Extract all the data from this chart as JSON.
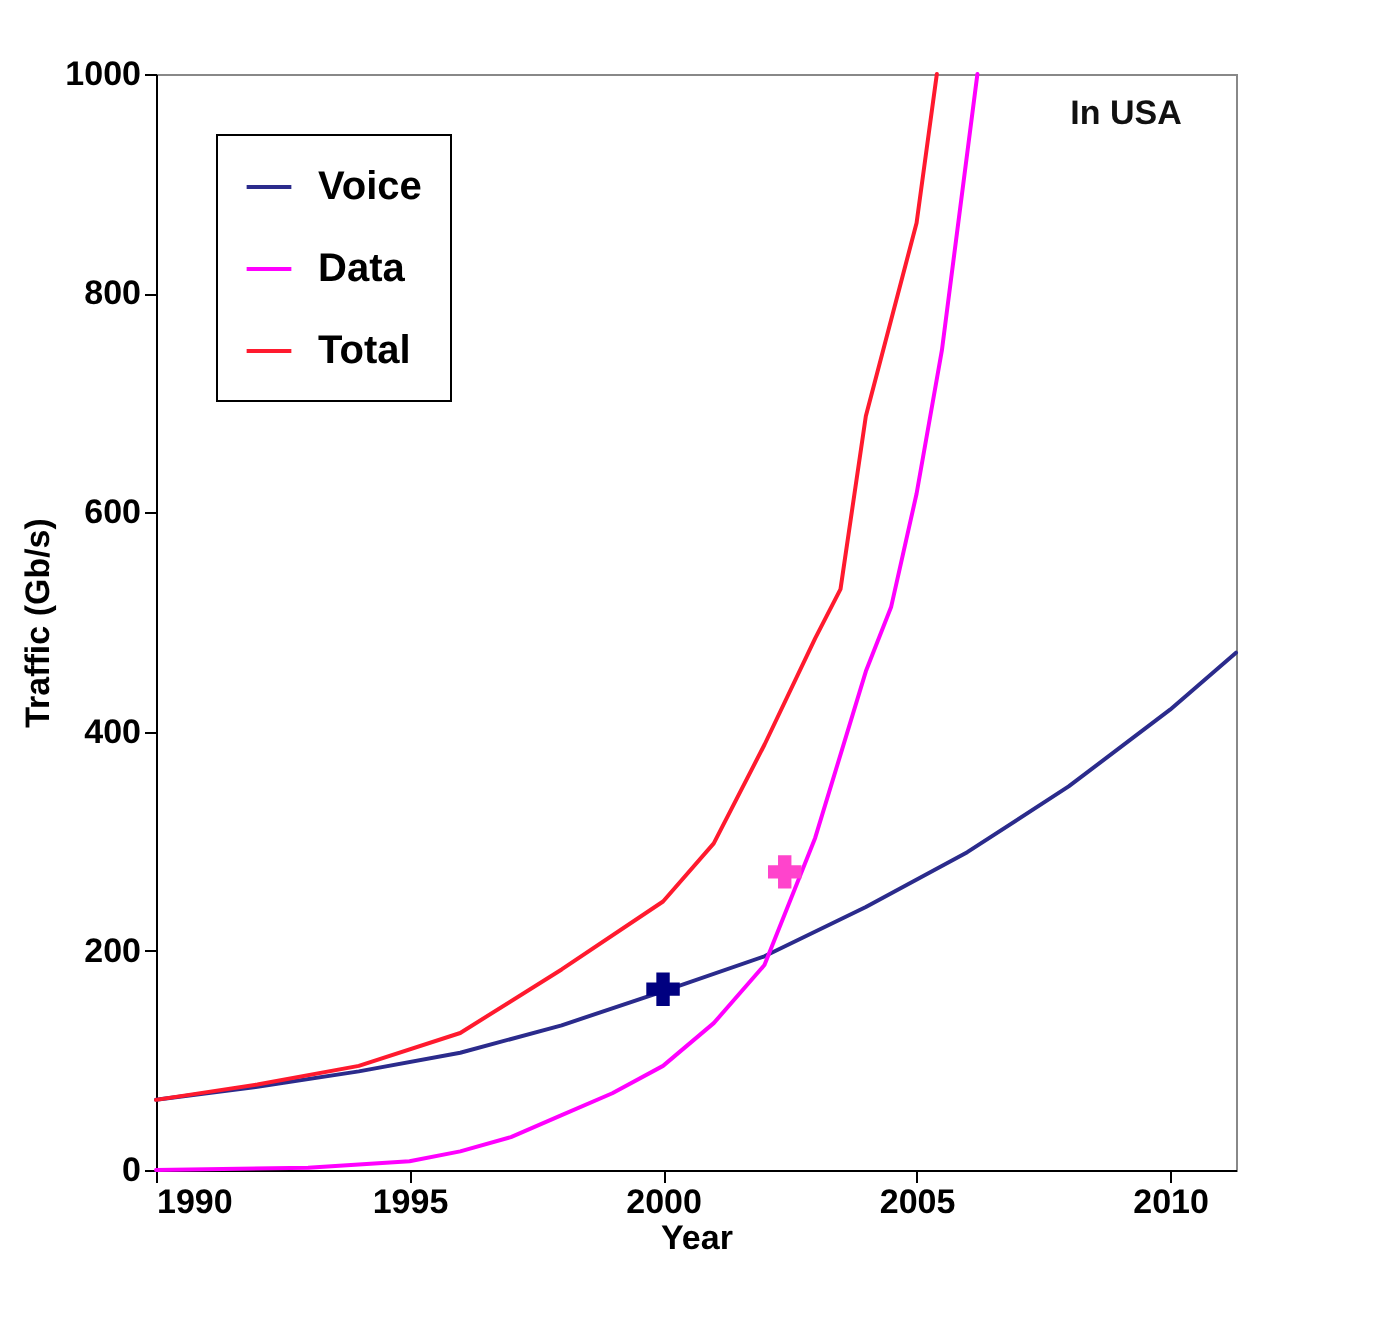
{
  "chart_data": {
    "type": "line",
    "xlabel": "Year",
    "ylabel": "Traffic (Gb/s)",
    "xlim": [
      1990,
      2011.3
    ],
    "ylim": [
      0,
      1000
    ],
    "xticks": [
      1990,
      1995,
      2000,
      2005,
      2010
    ],
    "yticks": [
      0,
      200,
      400,
      600,
      800,
      1000
    ],
    "legend": "top left",
    "annotations": [
      "In USA"
    ],
    "series": [
      {
        "name": "Voice",
        "color": "#2b2b8c",
        "x": [
          1990,
          1992,
          1994,
          1996,
          1998,
          2000,
          2002,
          2004,
          2006,
          2008,
          2010,
          2011.3
        ],
        "values": [
          64,
          76,
          90,
          107,
          132,
          163,
          195,
          240,
          290,
          350,
          420,
          472
        ]
      },
      {
        "name": "Data",
        "color": "#ff00ff",
        "x": [
          1990,
          1993,
          1994,
          1995,
          1996,
          1997,
          1998,
          1999,
          2000,
          2001,
          2002,
          2003,
          2004,
          2004.5,
          2005,
          2005.5,
          2006.2
        ],
        "values": [
          0,
          2,
          5,
          8,
          17,
          30,
          50,
          70,
          95,
          134,
          187,
          303,
          455,
          514,
          617,
          748,
          1000
        ]
      },
      {
        "name": "Total",
        "color": "#ff1a2e",
        "x": [
          1990,
          1992,
          1994,
          1996,
          1998,
          2000,
          2001,
          2002,
          2003,
          2003.5,
          2004,
          2005,
          2005.4
        ],
        "values": [
          64,
          78,
          95,
          125,
          183,
          245,
          298,
          388,
          485,
          530,
          688,
          864,
          1000
        ]
      },
      {
        "type": "scatter",
        "marker": "cross",
        "color": "#000080",
        "x": [
          2000
        ],
        "values": [
          165
        ]
      },
      {
        "type": "scatter",
        "marker": "cross",
        "color": "#ff44cc",
        "x": [
          2002.4
        ],
        "values": [
          272
        ]
      }
    ]
  }
}
